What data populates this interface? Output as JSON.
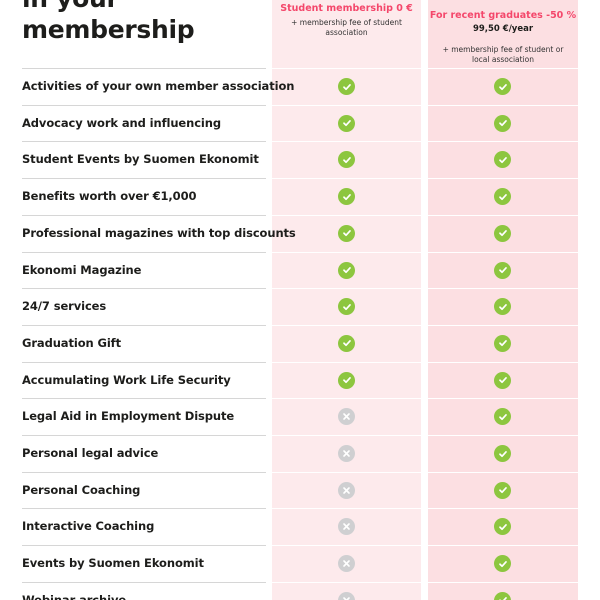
{
  "heading": {
    "line1": "in your",
    "line2": "membership"
  },
  "plans": {
    "student": {
      "title": "Student membership 0 €",
      "note": "+ membership fee of student association"
    },
    "graduate": {
      "title": "For recent graduates -50 %",
      "price": "99,50 €/year",
      "note": "+ membership fee of student or local association"
    }
  },
  "rows": [
    {
      "label": "Activities of your own member association",
      "student": "check",
      "graduate": "check"
    },
    {
      "label": "Advocacy work and influencing",
      "student": "check",
      "graduate": "check"
    },
    {
      "label": "Student Events by Suomen Ekonomit",
      "student": "check",
      "graduate": "check"
    },
    {
      "label": "Benefits worth over €1,000",
      "student": "check",
      "graduate": "check"
    },
    {
      "label": "Professional magazines with top discounts",
      "student": "check",
      "graduate": "check"
    },
    {
      "label": "Ekonomi Magazine",
      "student": "check",
      "graduate": "check"
    },
    {
      "label": "24/7 services",
      "student": "check",
      "graduate": "check"
    },
    {
      "label": "Graduation Gift",
      "student": "check",
      "graduate": "check"
    },
    {
      "label": "Accumulating Work Life Security",
      "student": "check",
      "graduate": "check"
    },
    {
      "label": "Legal Aid in Employment Dispute",
      "student": "cross",
      "graduate": "check"
    },
    {
      "label": "Personal legal advice",
      "student": "cross",
      "graduate": "check"
    },
    {
      "label": "Personal Coaching",
      "student": "cross",
      "graduate": "check"
    },
    {
      "label": "Interactive Coaching",
      "student": "cross",
      "graduate": "check"
    },
    {
      "label": "Events by Suomen Ekonomit",
      "student": "cross",
      "graduate": "check"
    },
    {
      "label": "Webinar archive",
      "student": "cross",
      "graduate": "check"
    }
  ],
  "colors": {
    "accent": "#f4476b",
    "check": "#8dc63f",
    "cross": "#cfcfd1",
    "student_column": "#fdeaec",
    "graduate_column": "#fcdfe2"
  }
}
